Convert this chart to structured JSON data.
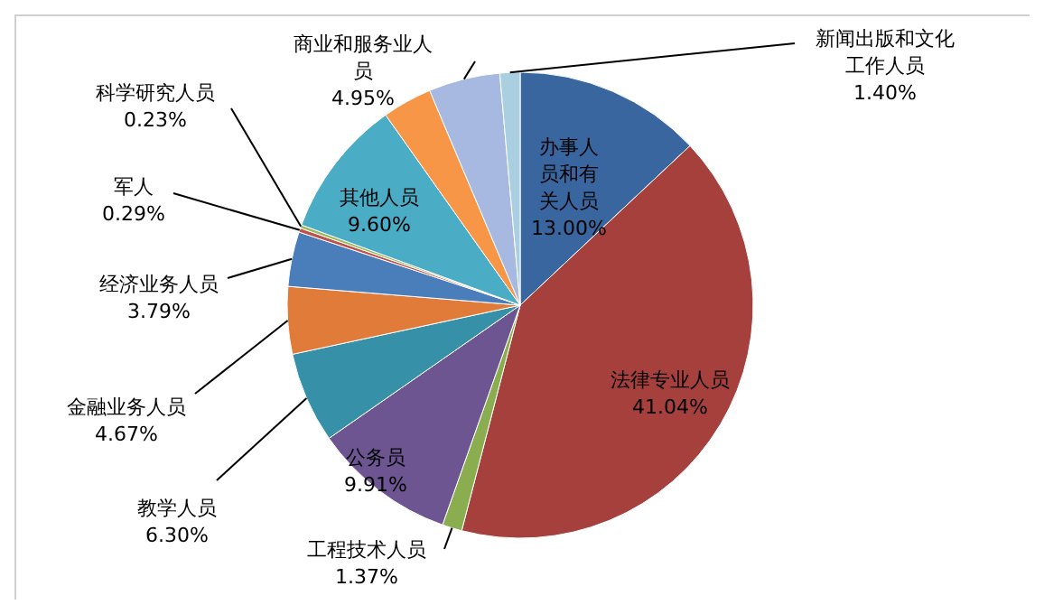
{
  "chart_data": {
    "type": "pie",
    "categories": [
      "办事人员和有关人员",
      "法律专业人员",
      "工程技术人员",
      "公务员",
      "教学人员",
      "金融业务人员",
      "经济业务人员",
      "军人",
      "科学研究人员",
      "其他人员",
      null,
      "商业和服务业人员",
      "新闻出版和文化工作人员"
    ],
    "values": [
      13.0,
      41.04,
      1.37,
      9.91,
      6.3,
      4.67,
      3.79,
      0.29,
      0.23,
      9.6,
      3.45,
      4.95,
      1.4
    ],
    "colors": [
      "#3a66a0",
      "#a5403d",
      "#8aad4f",
      "#6d5592",
      "#3590a8",
      "#e07b39",
      "#4a7ebb",
      "#c0504d",
      "#9bbb59",
      "#4bacc6",
      "#f79646",
      "#a7b9e0",
      "#a9cfe0"
    ],
    "value_labels": [
      "13.00%",
      "41.04%",
      "1.37%",
      "9.91%",
      "6.30%",
      "4.67%",
      "3.79%",
      "0.29%",
      "0.23%",
      "9.60%",
      null,
      "4.95%",
      "1.40%"
    ]
  }
}
